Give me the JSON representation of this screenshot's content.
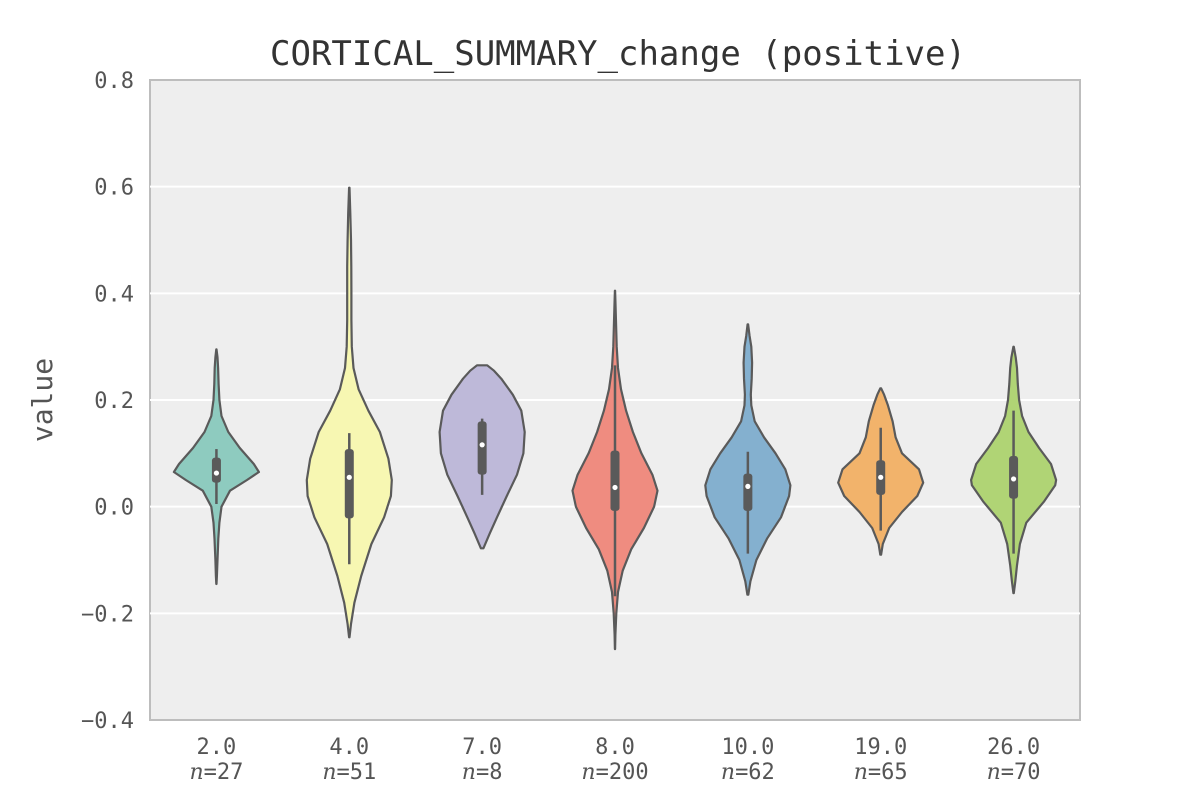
{
  "chart_data": {
    "type": "violin",
    "title": "CORTICAL_SUMMARY_change (positive)",
    "xlabel": "",
    "ylabel": "value",
    "ylim": [
      -0.4,
      0.8
    ],
    "yticks": [
      -0.4,
      -0.2,
      0.0,
      0.2,
      0.4,
      0.6,
      0.8
    ],
    "ytick_labels": [
      "−0.4",
      "−0.2",
      "0.0",
      "0.2",
      "0.4",
      "0.6",
      "0.8"
    ],
    "grid": true,
    "categories": [
      "2.0",
      "4.0",
      "7.0",
      "8.0",
      "10.0",
      "19.0",
      "26.0"
    ],
    "n_prefix": "n",
    "counts": [
      "=27",
      "=51",
      "=8",
      "=200",
      "=62",
      "=65",
      "=70"
    ],
    "colors": [
      "#8ecbbf",
      "#f7f7b2",
      "#beb9d9",
      "#ef8c80",
      "#84b0cf",
      "#f2b36b",
      "#b0d475"
    ],
    "series": [
      {
        "category": "2.0",
        "min": -0.145,
        "max": 0.295,
        "q1": 0.045,
        "median": 0.063,
        "q3": 0.092,
        "whisker_low": 0.005,
        "whisker_high": 0.108,
        "density": [
          [
            -0.145,
            0.002
          ],
          [
            -0.13,
            0.012
          ],
          [
            -0.1,
            0.025
          ],
          [
            -0.06,
            0.045
          ],
          [
            -0.03,
            0.07
          ],
          [
            0.0,
            0.12
          ],
          [
            0.03,
            0.32
          ],
          [
            0.05,
            0.72
          ],
          [
            0.065,
            1.0
          ],
          [
            0.08,
            0.88
          ],
          [
            0.11,
            0.55
          ],
          [
            0.14,
            0.28
          ],
          [
            0.17,
            0.12
          ],
          [
            0.2,
            0.07
          ],
          [
            0.23,
            0.05
          ],
          [
            0.26,
            0.04
          ],
          [
            0.28,
            0.025
          ],
          [
            0.295,
            0.002
          ]
        ]
      },
      {
        "category": "4.0",
        "min": -0.245,
        "max": 0.598,
        "q1": -0.022,
        "median": 0.055,
        "q3": 0.108,
        "whisker_low": -0.108,
        "whisker_high": 0.138,
        "density": [
          [
            -0.245,
            0.005
          ],
          [
            -0.22,
            0.04
          ],
          [
            -0.18,
            0.12
          ],
          [
            -0.13,
            0.28
          ],
          [
            -0.07,
            0.52
          ],
          [
            -0.02,
            0.82
          ],
          [
            0.02,
            0.98
          ],
          [
            0.05,
            1.0
          ],
          [
            0.09,
            0.92
          ],
          [
            0.14,
            0.72
          ],
          [
            0.18,
            0.45
          ],
          [
            0.22,
            0.22
          ],
          [
            0.26,
            0.1
          ],
          [
            0.3,
            0.06
          ],
          [
            0.35,
            0.05
          ],
          [
            0.4,
            0.05
          ],
          [
            0.45,
            0.048
          ],
          [
            0.5,
            0.04
          ],
          [
            0.55,
            0.025
          ],
          [
            0.598,
            0.005
          ]
        ]
      },
      {
        "category": "7.0",
        "min": -0.078,
        "max": 0.265,
        "q1": 0.06,
        "median": 0.116,
        "q3": 0.16,
        "whisker_low": 0.022,
        "whisker_high": 0.165,
        "density": [
          [
            -0.078,
            0.03
          ],
          [
            -0.05,
            0.18
          ],
          [
            -0.02,
            0.35
          ],
          [
            0.02,
            0.58
          ],
          [
            0.06,
            0.82
          ],
          [
            0.1,
            0.97
          ],
          [
            0.14,
            1.0
          ],
          [
            0.18,
            0.92
          ],
          [
            0.21,
            0.72
          ],
          [
            0.24,
            0.45
          ],
          [
            0.255,
            0.28
          ],
          [
            0.265,
            0.12
          ]
        ]
      },
      {
        "category": "8.0",
        "min": -0.267,
        "max": 0.405,
        "q1": -0.008,
        "median": 0.036,
        "q3": 0.105,
        "whisker_low": -0.168,
        "whisker_high": 0.265,
        "density": [
          [
            -0.267,
            0.002
          ],
          [
            -0.24,
            0.01
          ],
          [
            -0.2,
            0.03
          ],
          [
            -0.16,
            0.07
          ],
          [
            -0.12,
            0.18
          ],
          [
            -0.08,
            0.38
          ],
          [
            -0.04,
            0.68
          ],
          [
            0.0,
            0.92
          ],
          [
            0.03,
            1.0
          ],
          [
            0.06,
            0.88
          ],
          [
            0.1,
            0.62
          ],
          [
            0.14,
            0.42
          ],
          [
            0.18,
            0.26
          ],
          [
            0.22,
            0.14
          ],
          [
            0.26,
            0.07
          ],
          [
            0.3,
            0.04
          ],
          [
            0.34,
            0.025
          ],
          [
            0.38,
            0.012
          ],
          [
            0.405,
            0.002
          ]
        ]
      },
      {
        "category": "10.0",
        "min": -0.165,
        "max": 0.342,
        "q1": -0.008,
        "median": 0.038,
        "q3": 0.062,
        "whisker_low": -0.088,
        "whisker_high": 0.103,
        "density": [
          [
            -0.165,
            0.01
          ],
          [
            -0.14,
            0.06
          ],
          [
            -0.1,
            0.2
          ],
          [
            -0.06,
            0.45
          ],
          [
            -0.02,
            0.78
          ],
          [
            0.02,
            0.97
          ],
          [
            0.04,
            1.0
          ],
          [
            0.07,
            0.88
          ],
          [
            0.1,
            0.65
          ],
          [
            0.13,
            0.38
          ],
          [
            0.16,
            0.16
          ],
          [
            0.19,
            0.08
          ],
          [
            0.21,
            0.07
          ],
          [
            0.24,
            0.09
          ],
          [
            0.27,
            0.1
          ],
          [
            0.3,
            0.08
          ],
          [
            0.32,
            0.04
          ],
          [
            0.342,
            0.005
          ]
        ]
      },
      {
        "category": "19.0",
        "min": -0.09,
        "max": 0.222,
        "q1": 0.022,
        "median": 0.055,
        "q3": 0.087,
        "whisker_low": -0.045,
        "whisker_high": 0.148,
        "density": [
          [
            -0.09,
            0.01
          ],
          [
            -0.07,
            0.05
          ],
          [
            -0.04,
            0.2
          ],
          [
            -0.01,
            0.5
          ],
          [
            0.02,
            0.86
          ],
          [
            0.045,
            1.0
          ],
          [
            0.07,
            0.9
          ],
          [
            0.1,
            0.5
          ],
          [
            0.13,
            0.35
          ],
          [
            0.16,
            0.28
          ],
          [
            0.19,
            0.17
          ],
          [
            0.21,
            0.08
          ],
          [
            0.222,
            0.01
          ]
        ]
      },
      {
        "category": "26.0",
        "min": -0.162,
        "max": 0.3,
        "q1": 0.015,
        "median": 0.052,
        "q3": 0.095,
        "whisker_low": -0.088,
        "whisker_high": 0.18,
        "density": [
          [
            -0.162,
            0.005
          ],
          [
            -0.14,
            0.04
          ],
          [
            -0.11,
            0.08
          ],
          [
            -0.07,
            0.15
          ],
          [
            -0.03,
            0.3
          ],
          [
            0.01,
            0.72
          ],
          [
            0.04,
            0.98
          ],
          [
            0.05,
            1.0
          ],
          [
            0.08,
            0.88
          ],
          [
            0.11,
            0.6
          ],
          [
            0.14,
            0.35
          ],
          [
            0.17,
            0.2
          ],
          [
            0.2,
            0.13
          ],
          [
            0.23,
            0.1
          ],
          [
            0.26,
            0.08
          ],
          [
            0.28,
            0.05
          ],
          [
            0.3,
            0.005
          ]
        ]
      }
    ]
  }
}
